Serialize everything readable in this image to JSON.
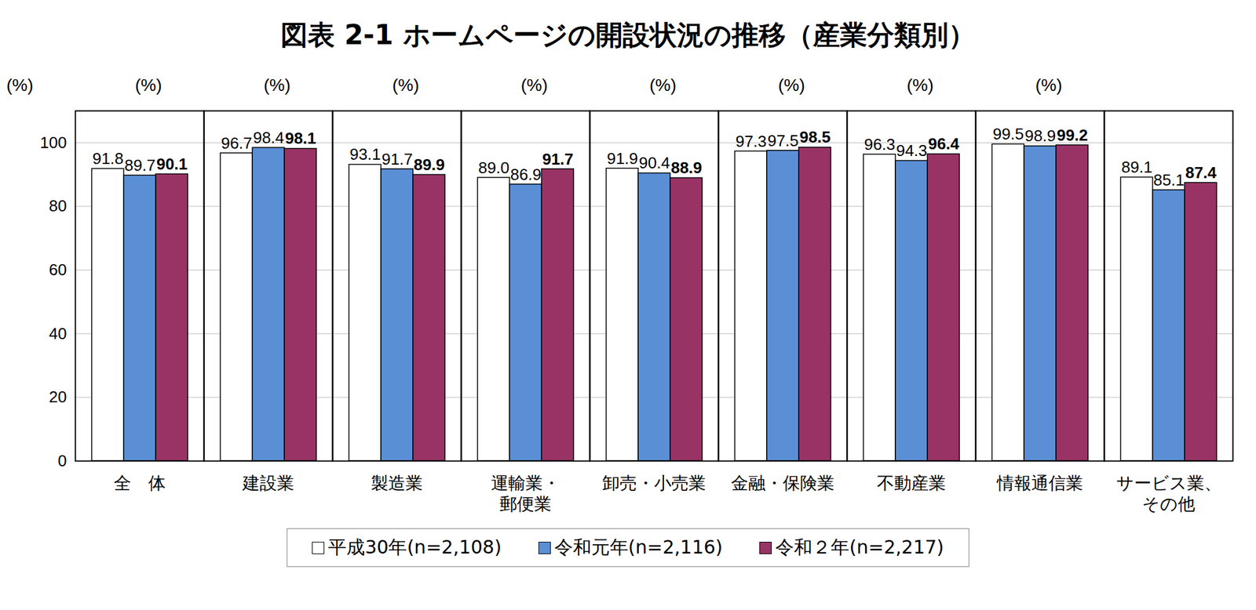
{
  "chart_data": {
    "type": "bar",
    "title": "図表 2-1 ホームページの開設状況の推移（産業分類別）",
    "y_label": "(%)",
    "categories": [
      "全　体",
      "建設業",
      "製造業",
      "運輸業・\n郵便業",
      "卸売・小売業",
      "金融・保険業",
      "不動産業",
      "情報通信業",
      "サービス業、\nその他"
    ],
    "series": [
      {
        "name": "平成30年(n=2,108)",
        "color": "#ffffff",
        "values": [
          91.8,
          96.7,
          93.1,
          89.0,
          91.9,
          97.3,
          96.3,
          99.5,
          89.1
        ],
        "value_labels": [
          "91.8",
          "96.7",
          "93.1",
          "89.0",
          "91.9",
          "97.3",
          "96.3",
          "99.5",
          "89.1"
        ]
      },
      {
        "name": "令和元年(n=2,116)",
        "color": "#5a8fd6",
        "values": [
          89.7,
          98.4,
          91.7,
          86.9,
          90.4,
          97.5,
          94.3,
          98.9,
          85.1
        ],
        "value_labels": [
          "89.7",
          "98.4",
          "91.7",
          "86.9",
          "90.4",
          "97.5",
          "94.3",
          "98.9",
          "85.1"
        ]
      },
      {
        "name": "令和２年(n=2,217)",
        "color": "#993366",
        "values": [
          90.1,
          98.1,
          89.9,
          91.7,
          88.9,
          98.5,
          96.4,
          99.2,
          87.4
        ],
        "value_labels": [
          "90.1",
          "98.1",
          "89.9",
          "91.7",
          "88.9",
          "98.5",
          "96.4",
          "99.2",
          "87.4"
        ]
      }
    ],
    "ylim": [
      0,
      110
    ],
    "yticks": [
      0,
      20,
      40,
      60,
      80,
      100
    ],
    "grid": true,
    "legend": "bottom",
    "data_labels": true
  }
}
